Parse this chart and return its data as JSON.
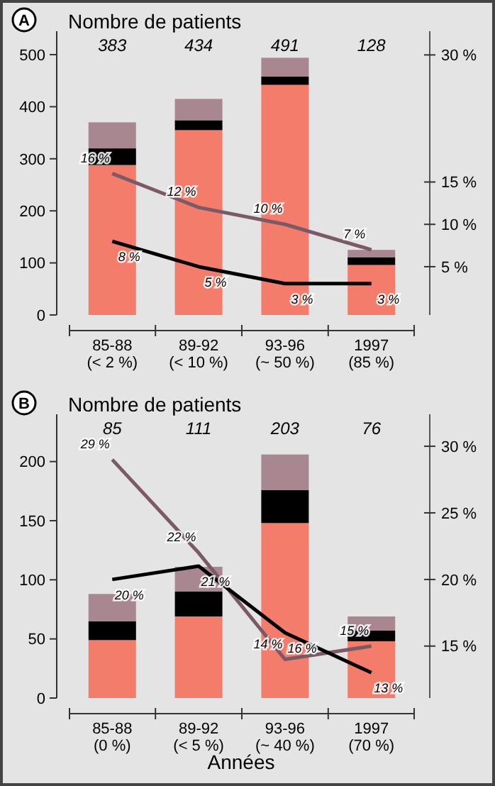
{
  "chart_data": [
    {
      "type": "bar",
      "title": "A",
      "ylabel": "Nombre de patients",
      "stacked": true,
      "categories": [
        "85-88\n(< 2 %)",
        "89-92\n(< 10 %)",
        "93-96\n(~ 50 %)",
        "1997\n(85 %)"
      ],
      "ylim": [
        0,
        545
      ],
      "yticks": [
        0,
        100,
        200,
        300,
        400,
        500
      ],
      "y2lim": [
        -0.7,
        32.8
      ],
      "y2ticks": [
        {
          "value": 5,
          "label": "5 %"
        },
        {
          "value": 10,
          "label": "10 %"
        },
        {
          "value": 15,
          "label": "15 %"
        },
        {
          "value": 30,
          "label": "30 %"
        }
      ],
      "annotations": [
        "383",
        "434",
        "491",
        "128"
      ],
      "grid": false,
      "marker": "none",
      "series": [
        {
          "color": "#f47c6a",
          "values": [
            288,
            355,
            442,
            96
          ]
        },
        {
          "color": "#000000",
          "values": [
            32,
            19,
            16,
            15
          ]
        },
        {
          "color": "#a88790",
          "values": [
            50,
            41,
            36,
            14
          ]
        },
        {
          "type": "line",
          "axis": "y2",
          "color": "#7a5a66",
          "values": [
            16,
            12,
            10,
            7
          ],
          "value_labels": [
            "16 %",
            "12 %",
            "10 %",
            "7 %"
          ]
        },
        {
          "type": "line",
          "axis": "y2",
          "color": "#000000",
          "values": [
            8,
            5,
            3,
            3
          ],
          "value_labels": [
            "8 %",
            "5 %",
            "3 %",
            "3 %"
          ]
        }
      ]
    },
    {
      "type": "bar",
      "title": "B",
      "ylabel": "Nombre de patients",
      "xlabel": "Années",
      "stacked": true,
      "categories": [
        "85-88\n(0 %)",
        "89-92\n(< 5 %)",
        "93-96\n(~ 40 %)",
        "1997\n(70 %)"
      ],
      "ylim": [
        0,
        240
      ],
      "yticks": [
        0,
        50,
        100,
        150,
        200
      ],
      "y2lim": [
        11.1,
        32.4
      ],
      "y2ticks": [
        {
          "value": 15,
          "label": "15 %"
        },
        {
          "value": 20,
          "label": "20 %"
        },
        {
          "value": 25,
          "label": "25 %"
        },
        {
          "value": 30,
          "label": "30 %"
        }
      ],
      "annotations": [
        "85",
        "111",
        "203",
        "76"
      ],
      "grid": false,
      "marker": "none",
      "series": [
        {
          "color": "#f47c6a",
          "values": [
            49,
            69,
            148,
            48
          ]
        },
        {
          "color": "#000000",
          "values": [
            16,
            21,
            28,
            9
          ]
        },
        {
          "color": "#a88790",
          "values": [
            23,
            21,
            30,
            12
          ]
        },
        {
          "type": "line",
          "axis": "y2",
          "color": "#7a5a66",
          "values": [
            29,
            22,
            14,
            15
          ],
          "value_labels": [
            "29 %",
            "22 %",
            "14 %",
            "15 %"
          ]
        },
        {
          "type": "line",
          "axis": "y2",
          "color": "#000000",
          "values": [
            20,
            21,
            16,
            13
          ],
          "value_labels": [
            "20 %",
            "21 %",
            "16 %",
            "13 %"
          ]
        }
      ]
    }
  ]
}
